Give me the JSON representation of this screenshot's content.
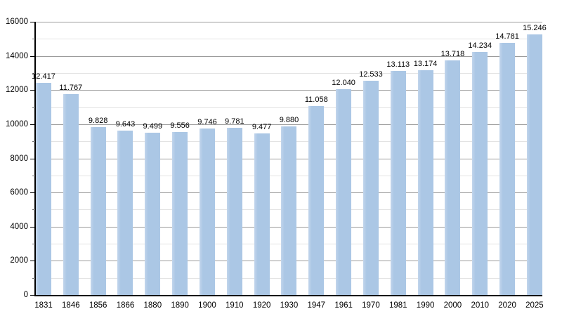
{
  "chart_data": {
    "type": "bar",
    "title": "",
    "xlabel": "",
    "ylabel": "",
    "categories": [
      "1831",
      "1846",
      "1856",
      "1866",
      "1880",
      "1890",
      "1900",
      "1910",
      "1920",
      "1930",
      "1947",
      "1961",
      "1970",
      "1981",
      "1990",
      "2000",
      "2010",
      "2020",
      "2025"
    ],
    "values": [
      12417,
      11767,
      9828,
      9643,
      9499,
      9556,
      9746,
      9781,
      9477,
      9880,
      11058,
      12040,
      12533,
      13113,
      13174,
      13718,
      14234,
      14781,
      15246
    ],
    "value_labels": [
      "12.417",
      "11.767",
      "9.828",
      "9.643",
      "9.499",
      "9.556",
      "9.746",
      "9.781",
      "9.477",
      "9.880",
      "11.058",
      "12.040",
      "12.533",
      "13.113",
      "13.174",
      "13.718",
      "14.234",
      "14.781",
      "15.246"
    ],
    "ylim": [
      0,
      16000
    ],
    "y_major_step": 2000,
    "y_minor_step": 1000,
    "y_tick_labels": [
      "0",
      "2000",
      "4000",
      "6000",
      "8000",
      "10000",
      "12000",
      "14000",
      "16000"
    ],
    "grid": "on",
    "legend": "none",
    "colors": {
      "bar_fill": "#abc7e5",
      "bar_fill_highlight": "#c2d5ec",
      "major_gridline": "#9c9c9c",
      "minor_gridline": "#e3e3e3",
      "axis": "#000000",
      "text": "#000000",
      "background": "#ffffff"
    }
  }
}
